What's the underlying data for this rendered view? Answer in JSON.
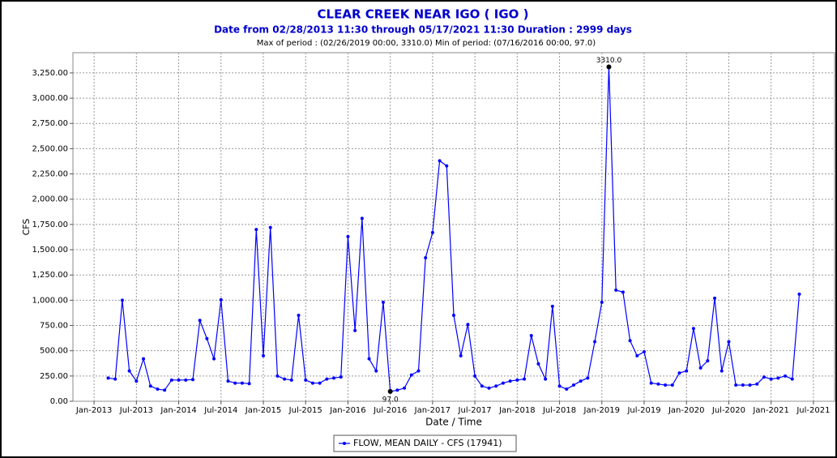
{
  "chart_data": {
    "type": "line",
    "title": "CLEAR CREEK NEAR IGO ( IGO )",
    "subtitle": "Date from 02/28/2013 11:30 through 05/17/2021 11:30 Duration : 2999 days",
    "subtitle2": "Max of period : (02/26/2019 00:00, 3310.0)  Min of period: (07/16/2016 00:00,  97.0)",
    "x_label": "Date / Time",
    "y_label": "CFS",
    "grid": true,
    "x": [
      "2013-03",
      "2013-04",
      "2013-05",
      "2013-06",
      "2013-07",
      "2013-08",
      "2013-09",
      "2013-10",
      "2013-11",
      "2013-12",
      "2014-01",
      "2014-02",
      "2014-03",
      "2014-04",
      "2014-05",
      "2014-06",
      "2014-07",
      "2014-08",
      "2014-09",
      "2014-10",
      "2014-11",
      "2014-12",
      "2015-01",
      "2015-02",
      "2015-03",
      "2015-04",
      "2015-05",
      "2015-06",
      "2015-07",
      "2015-08",
      "2015-09",
      "2015-10",
      "2015-11",
      "2015-12",
      "2016-01",
      "2016-02",
      "2016-03",
      "2016-04",
      "2016-05",
      "2016-06",
      "2016-07",
      "2016-08",
      "2016-09",
      "2016-10",
      "2016-11",
      "2016-12",
      "2017-01",
      "2017-02",
      "2017-03",
      "2017-04",
      "2017-05",
      "2017-06",
      "2017-07",
      "2017-08",
      "2017-09",
      "2017-10",
      "2017-11",
      "2017-12",
      "2018-01",
      "2018-02",
      "2018-03",
      "2018-04",
      "2018-05",
      "2018-06",
      "2018-07",
      "2018-08",
      "2018-09",
      "2018-10",
      "2018-11",
      "2018-12",
      "2019-01",
      "2019-02",
      "2019-03",
      "2019-04",
      "2019-05",
      "2019-06",
      "2019-07",
      "2019-08",
      "2019-09",
      "2019-10",
      "2019-11",
      "2019-12",
      "2020-01",
      "2020-02",
      "2020-03",
      "2020-04",
      "2020-05",
      "2020-06",
      "2020-07",
      "2020-08",
      "2020-09",
      "2020-10",
      "2020-11",
      "2020-12",
      "2021-01",
      "2021-02",
      "2021-03",
      "2021-04",
      "2021-05"
    ],
    "series": [
      {
        "name": "FLOW, MEAN DAILY - CFS (17941)",
        "color": "#0000ff",
        "values": [
          230,
          220,
          1000,
          300,
          200,
          420,
          150,
          120,
          110,
          210,
          210,
          210,
          215,
          800,
          620,
          420,
          1005,
          200,
          180,
          180,
          175,
          1700,
          450,
          1720,
          250,
          220,
          210,
          850,
          210,
          180,
          180,
          220,
          230,
          240,
          1630,
          700,
          1810,
          420,
          300,
          980,
          97,
          110,
          130,
          260,
          300,
          1420,
          1670,
          2380,
          2330,
          850,
          450,
          760,
          250,
          150,
          130,
          150,
          180,
          200,
          210,
          220,
          650,
          370,
          220,
          940,
          150,
          120,
          160,
          200,
          230,
          590,
          980,
          3310,
          1100,
          1080,
          600,
          450,
          490,
          180,
          170,
          160,
          160,
          280,
          300,
          720,
          330,
          400,
          1020,
          300,
          590,
          160,
          160,
          160,
          170,
          240,
          220,
          230,
          250,
          220,
          1060
        ]
      }
    ],
    "annotations": [
      {
        "text": "3310.0",
        "x": "2019-02",
        "y": 3310
      },
      {
        "text": "97.0",
        "x": "2016-07",
        "y": 97
      }
    ],
    "xlim": [
      "2012-10",
      "2021-10"
    ],
    "xticks": [
      {
        "value": "2013-01",
        "label": "Jan-2013"
      },
      {
        "value": "2013-07",
        "label": "Jul-2013"
      },
      {
        "value": "2014-01",
        "label": "Jan-2014"
      },
      {
        "value": "2014-07",
        "label": "Jul-2014"
      },
      {
        "value": "2015-01",
        "label": "Jan-2015"
      },
      {
        "value": "2015-07",
        "label": "Jul-2015"
      },
      {
        "value": "2016-01",
        "label": "Jan-2016"
      },
      {
        "value": "2016-07",
        "label": "Jul-2016"
      },
      {
        "value": "2017-01",
        "label": "Jan-2017"
      },
      {
        "value": "2017-07",
        "label": "Jul-2017"
      },
      {
        "value": "2018-01",
        "label": "Jan-2018"
      },
      {
        "value": "2018-07",
        "label": "Jul-2018"
      },
      {
        "value": "2019-01",
        "label": "Jan-2019"
      },
      {
        "value": "2019-07",
        "label": "Jul-2019"
      },
      {
        "value": "2020-01",
        "label": "Jan-2020"
      },
      {
        "value": "2020-07",
        "label": "Jul-2020"
      },
      {
        "value": "2021-01",
        "label": "Jan-2021"
      },
      {
        "value": "2021-07",
        "label": "Jul-2021"
      }
    ],
    "ylim": [
      0,
      3450
    ],
    "yticks": [
      {
        "value": 0,
        "label": "0.00"
      },
      {
        "value": 250,
        "label": "250.00"
      },
      {
        "value": 500,
        "label": "500.00"
      },
      {
        "value": 750,
        "label": "750.00"
      },
      {
        "value": 1000,
        "label": "1,000.00"
      },
      {
        "value": 1250,
        "label": "1,250.00"
      },
      {
        "value": 1500,
        "label": "1,500.00"
      },
      {
        "value": 1750,
        "label": "1,750.00"
      },
      {
        "value": 2000,
        "label": "2,000.00"
      },
      {
        "value": 2250,
        "label": "2,250.00"
      },
      {
        "value": 2500,
        "label": "2,500.00"
      },
      {
        "value": 2750,
        "label": "2,750.00"
      },
      {
        "value": 3000,
        "label": "3,000.00"
      },
      {
        "value": 3250,
        "label": "3,250.00"
      }
    ]
  }
}
